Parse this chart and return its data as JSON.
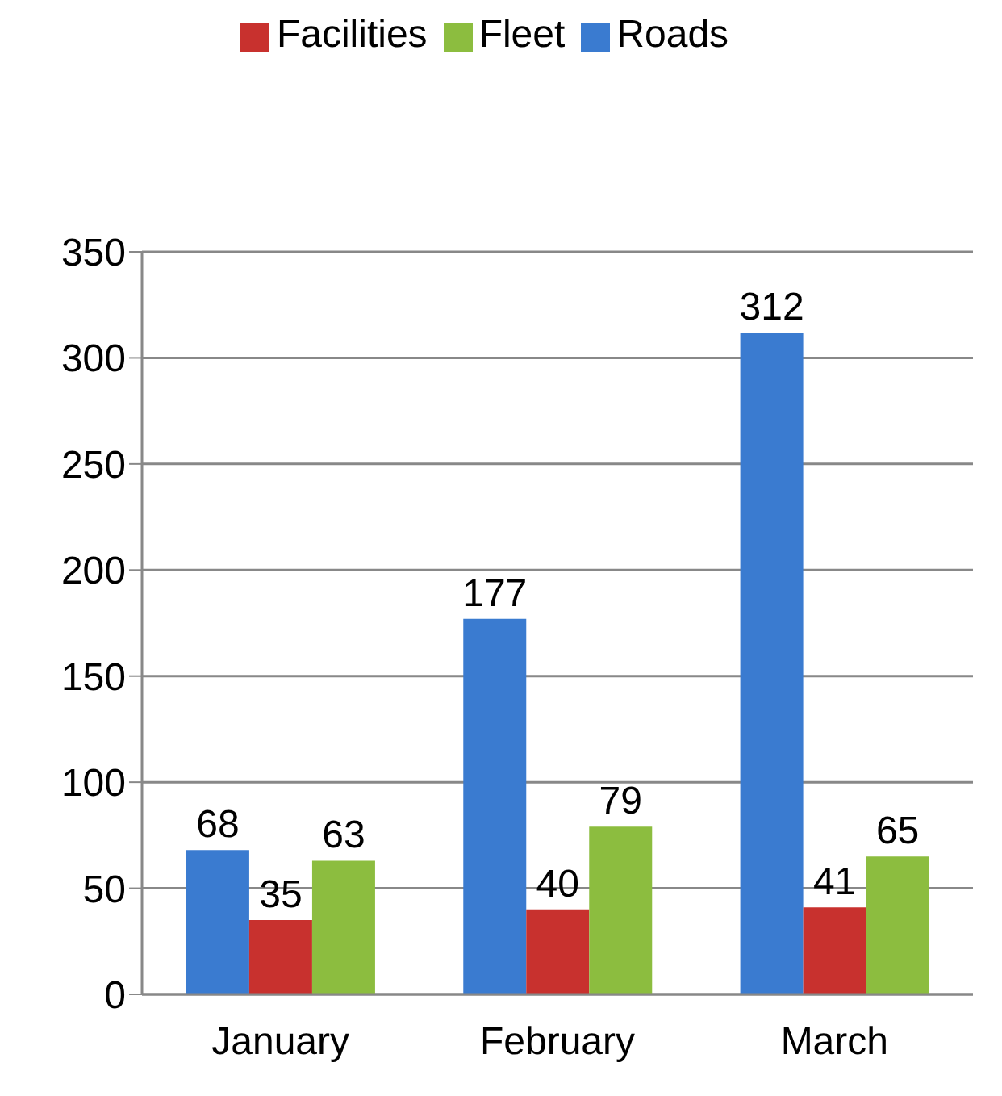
{
  "chart_data": {
    "type": "bar",
    "categories": [
      "January",
      "February",
      "March"
    ],
    "series": [
      {
        "name": "Roads",
        "color": "#3a7bd0",
        "values": [
          68,
          177,
          312
        ]
      },
      {
        "name": "Facilities",
        "color": "#c8312e",
        "values": [
          35,
          40,
          41
        ]
      },
      {
        "name": "Fleet",
        "color": "#8cbd3f",
        "values": [
          63,
          79,
          65
        ]
      }
    ],
    "ylim": [
      0,
      350
    ],
    "yticks": [
      0,
      50,
      100,
      150,
      200,
      250,
      300,
      350
    ],
    "grid": "y",
    "legend": "top",
    "data_labels": true
  }
}
